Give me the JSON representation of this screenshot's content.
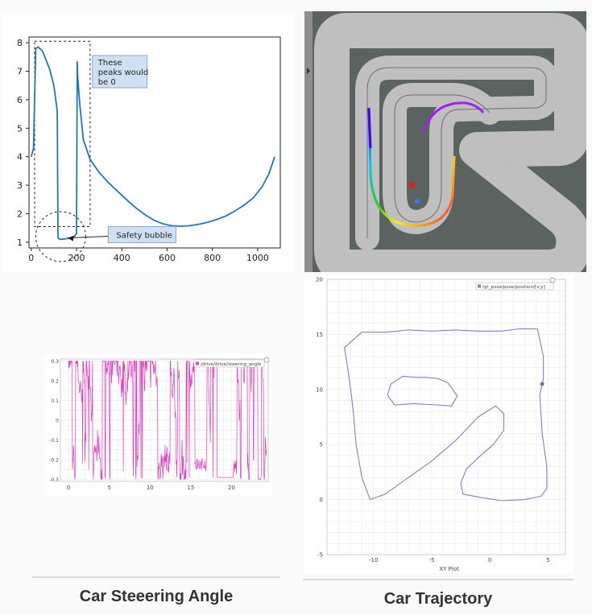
{
  "chart_data": [
    {
      "type": "line",
      "title": "",
      "xlabel": "",
      "ylabel": "",
      "xlim": [
        -10,
        1100
      ],
      "ylim": [
        0.8,
        8.2
      ],
      "xticks": [
        "0",
        "200",
        "400",
        "600",
        "800",
        "1000"
      ],
      "yticks": [
        "1",
        "2",
        "3",
        "4",
        "5",
        "6",
        "7",
        "8"
      ],
      "series": [
        {
          "color": "#1f77b4",
          "x": [
            0,
            10,
            20,
            30,
            40,
            50,
            60,
            80,
            100,
            115,
            118,
            120,
            130,
            150,
            170,
            190,
            200,
            203,
            205,
            215,
            230,
            260,
            300,
            340,
            380,
            420,
            460,
            500,
            540,
            580,
            620,
            660,
            700,
            740,
            780,
            820,
            860,
            900,
            940,
            980,
            1020,
            1050,
            1075
          ],
          "y": [
            4.0,
            4.3,
            7.8,
            7.85,
            7.78,
            7.7,
            7.5,
            7.1,
            6.5,
            5.6,
            1.2,
            1.13,
            1.1,
            1.12,
            1.15,
            1.2,
            1.3,
            7.35,
            6.8,
            5.8,
            4.6,
            3.9,
            3.45,
            3.1,
            2.8,
            2.5,
            2.22,
            1.98,
            1.78,
            1.65,
            1.58,
            1.56,
            1.58,
            1.63,
            1.7,
            1.8,
            1.92,
            2.1,
            2.3,
            2.55,
            2.95,
            3.4,
            4.0
          ]
        }
      ],
      "annotations": [
        {
          "text": [
            "These",
            "peaks would",
            "be 0"
          ]
        },
        {
          "text": [
            "Safety bubble"
          ]
        }
      ]
    },
    {
      "type": "line",
      "title": "",
      "xlabel": "",
      "ylabel": "",
      "xlim": [
        -1,
        24.5
      ],
      "ylim": [
        -0.31,
        0.31
      ],
      "xticks": [
        "0",
        "5",
        "10",
        "15",
        "20"
      ],
      "yticks": [
        "0.3",
        "0.2",
        "0.1",
        "0",
        "-0.1",
        "-0.2",
        "-0.3"
      ],
      "legend": "top-right",
      "series": [
        {
          "name": "/drive/drive/steering_angle",
          "color": "#e040c0"
        }
      ]
    },
    {
      "type": "line",
      "title": "XY Plot",
      "xlabel": "",
      "ylabel": "",
      "xlim": [
        -14,
        6.5
      ],
      "ylim": [
        -5,
        20
      ],
      "xticks": [
        "-10",
        "-5",
        "0",
        "5"
      ],
      "yticks": [
        "20",
        "15",
        "10",
        "5",
        "0",
        "-5"
      ],
      "legend": "top-right",
      "series": [
        {
          "name": "/gt_pose/pose/position/[x;y]",
          "color": "#9a74c8",
          "x": [
            -12.5,
            -11,
            -9,
            -7,
            -5,
            -3,
            -1,
            1,
            2.5,
            4.1,
            4.6,
            4.6,
            4.3,
            4.5,
            4.9,
            4.9,
            4.4,
            3,
            1,
            -0.8,
            -2.3,
            -2.5,
            -2,
            -1,
            0.3,
            1.2,
            1.2,
            0.5,
            -1,
            -3,
            -5,
            -7,
            -9,
            -10.3,
            -11,
            -11.5,
            -11.7,
            -11.9,
            -12.2,
            -12.5
          ],
          "y": [
            13.8,
            15.2,
            15.2,
            15.4,
            15.3,
            15.4,
            15.3,
            15.3,
            15.5,
            15.5,
            13.0,
            11.0,
            9.5,
            6.0,
            3.0,
            1.0,
            0.3,
            0.0,
            -0.1,
            0.2,
            0.5,
            1.5,
            2.8,
            3.8,
            5.0,
            6.3,
            7.8,
            8.5,
            7.5,
            5.3,
            3.5,
            2.0,
            0.5,
            0.0,
            2.0,
            5.0,
            7.5,
            9.5,
            11.8,
            13.8
          ]
        },
        {
          "name": "",
          "color": "#9a74c8",
          "x": [
            -6.3,
            -7.5,
            -8.5,
            -8.8,
            -8.2,
            -6.5,
            -4.5,
            -3.3,
            -2.8,
            -3.6,
            -4.5,
            -5.5,
            -6.3
          ],
          "y": [
            11.1,
            11.2,
            10.5,
            9.5,
            8.6,
            8.7,
            8.6,
            8.5,
            9.4,
            10.6,
            11.0,
            11.1,
            11.1
          ]
        }
      ]
    }
  ],
  "captions": {
    "steering": "Car Steeering Angle",
    "trajectory": "Car Trajectory"
  }
}
